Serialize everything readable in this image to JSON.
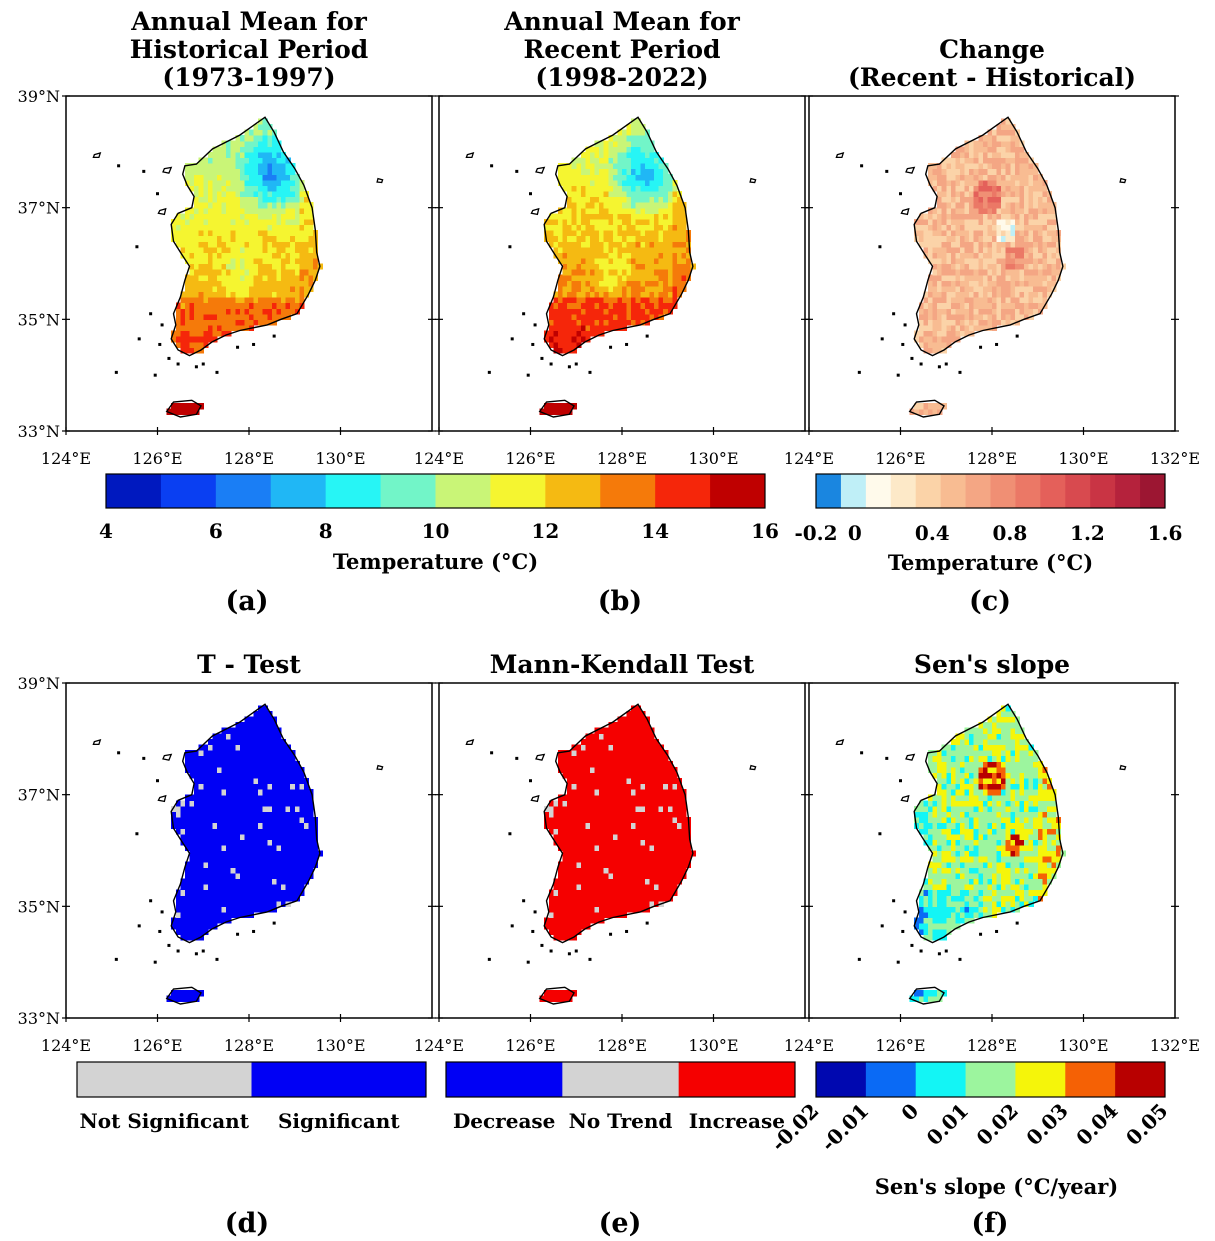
{
  "panels": [
    {
      "id": "a",
      "title_lines": [
        "Annual Mean for",
        "Historical Period",
        "(1973-1997)"
      ],
      "label": "(a)",
      "kind": "temp_hist"
    },
    {
      "id": "b",
      "title_lines": [
        "Annual Mean for",
        "Recent Period",
        "(1998-2022)"
      ],
      "label": "(b)",
      "kind": "temp_recent"
    },
    {
      "id": "c",
      "title_lines": [
        "Change",
        "(Recent - Historical)"
      ],
      "label": "(c)",
      "kind": "change"
    },
    {
      "id": "d",
      "title_lines": [
        "T - Test"
      ],
      "label": "(d)",
      "kind": "ttest"
    },
    {
      "id": "e",
      "title_lines": [
        "Mann-Kendall Test"
      ],
      "label": "(e)",
      "kind": "mk"
    },
    {
      "id": "f",
      "title_lines": [
        "Sen's slope"
      ],
      "label": "(f)",
      "kind": "sen"
    }
  ],
  "map_extent": {
    "lon": [
      124,
      132
    ],
    "lat": [
      33,
      39
    ]
  },
  "lat_ticks": [
    "39°N",
    "37°N",
    "35°N",
    "33°N"
  ],
  "lon_ticks_top": [
    "124°E",
    "126°E",
    "128°E",
    "130°E",
    "124°E",
    "126°E",
    "128°E",
    "130°E",
    "124°E",
    "126°E",
    "128°E",
    "130°E",
    "132°E"
  ],
  "lon_ticks_bottom": [
    "124°E",
    "126°E",
    "128°E",
    "130°E",
    "124°E",
    "126°E",
    "128°E",
    "130°E",
    "124°E",
    "126°E",
    "128°E",
    "130°E",
    "132°E"
  ],
  "colorbars": {
    "temperature": {
      "colors": [
        "#0019bf",
        "#0a3ff2",
        "#1a7ef5",
        "#20b7f5",
        "#27f5f5",
        "#72f5c8",
        "#c9f577",
        "#f5f530",
        "#f5ba12",
        "#f57a0a",
        "#f5260a",
        "#bf0000"
      ],
      "ticks": [
        "4",
        "6",
        "8",
        "10",
        "12",
        "14",
        "16"
      ],
      "label": "Temperature (°C)"
    },
    "change": {
      "colors": [
        "#1a86e0",
        "#bfeff7",
        "#fffaeb",
        "#fde9c8",
        "#fbd3a8",
        "#f8bc92",
        "#f4a684",
        "#f08f74",
        "#eb7866",
        "#e4605a",
        "#d84a4f",
        "#c93444",
        "#b5223c",
        "#9c1632"
      ],
      "ticks": [
        "-0.2",
        "0",
        "0.4",
        "0.8",
        "1.2",
        "1.6"
      ],
      "label": "Temperature (°C)"
    },
    "ttest": {
      "colors": [
        "#d3d3d3",
        "#0000f5"
      ],
      "labels": [
        "Not Significant",
        "Significant"
      ]
    },
    "mk": {
      "colors": [
        "#0000f5",
        "#d3d3d3",
        "#f50000"
      ],
      "labels": [
        "Decrease",
        "No Trend",
        "Increase"
      ]
    },
    "sen": {
      "colors": [
        "#0008b0",
        "#0a6af5",
        "#13f5f5",
        "#9cf59e",
        "#f5f50a",
        "#f56105",
        "#b80000"
      ],
      "ticks": [
        "-0.02",
        "-0.01",
        "0",
        "0.01",
        "0.02",
        "0.03",
        "0.04",
        "0.05"
      ],
      "label": "Sen's slope (°C/year)"
    }
  }
}
